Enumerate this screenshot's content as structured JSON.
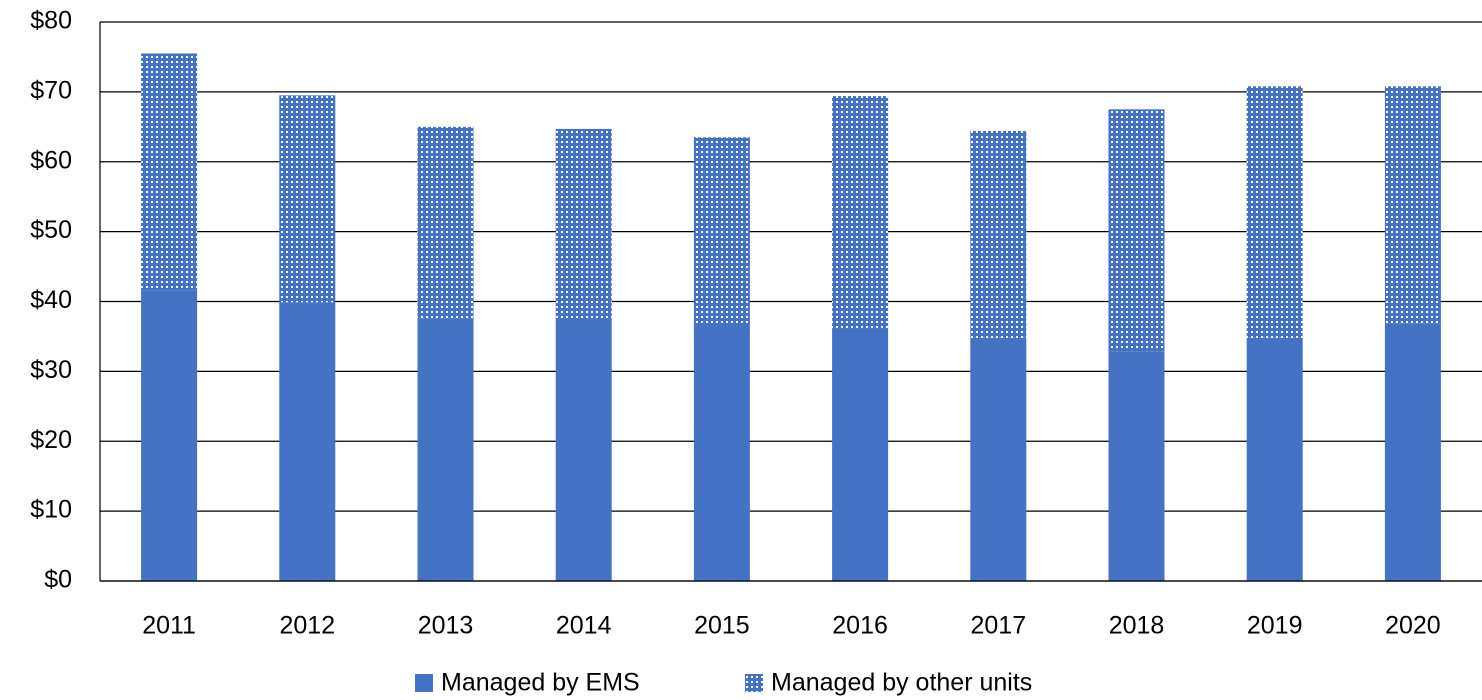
{
  "chart_data": {
    "type": "stacked_bar",
    "categories": [
      "2011",
      "2012",
      "2013",
      "2014",
      "2015",
      "2016",
      "2017",
      "2018",
      "2019",
      "2020"
    ],
    "series": [
      {
        "name": "Managed by EMS",
        "color": "#4472c4",
        "values": [
          41.6,
          39.9,
          37.6,
          37.5,
          36.5,
          36.2,
          34.8,
          32.9,
          34.8,
          36.9
        ]
      },
      {
        "name": "Managed by other units",
        "color": "#4472c4",
        "pattern": "dots",
        "values": [
          33.9,
          29.6,
          27.4,
          27.2,
          27.0,
          33.2,
          29.6,
          34.6,
          36.0,
          33.9
        ]
      }
    ],
    "ylim": [
      0,
      80
    ],
    "yticks": [
      {
        "value": 0,
        "label": "$0"
      },
      {
        "value": 10,
        "label": "$10"
      },
      {
        "value": 20,
        "label": "$20"
      },
      {
        "value": 30,
        "label": "$30"
      },
      {
        "value": 40,
        "label": "$40"
      },
      {
        "value": 50,
        "label": "$50"
      },
      {
        "value": 60,
        "label": "$60"
      },
      {
        "value": 70,
        "label": "$70"
      },
      {
        "value": 80,
        "label": "$80"
      }
    ],
    "grid": true,
    "legend": "bottom"
  }
}
